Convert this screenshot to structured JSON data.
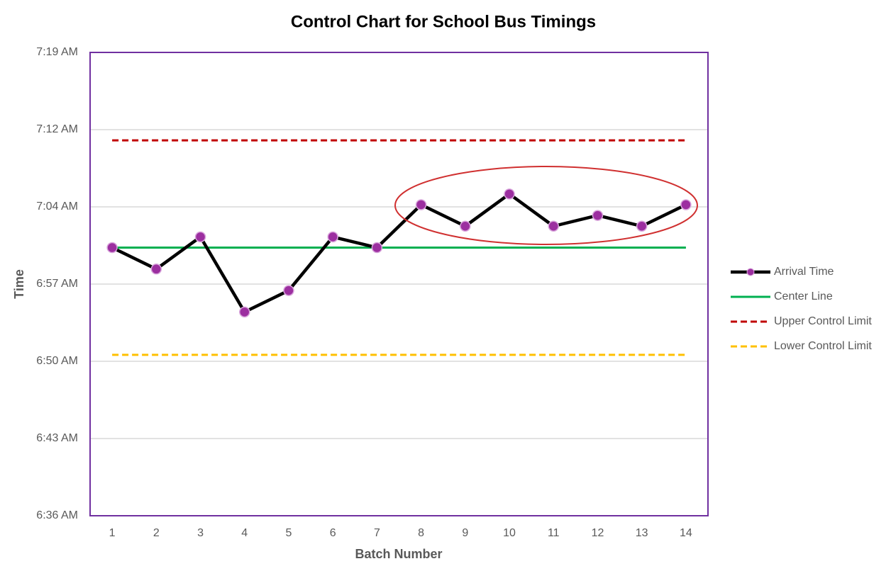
{
  "chart_data": {
    "type": "line",
    "title": "Control Chart for School Bus Timings",
    "x_label": "Batch Number",
    "y_label": "Time",
    "categories": [
      "1",
      "2",
      "3",
      "4",
      "5",
      "6",
      "7",
      "8",
      "9",
      "10",
      "11",
      "12",
      "13",
      "14"
    ],
    "series": [
      {
        "name": "Arrival Time",
        "color": "#000000",
        "marker_color": "#9c2fa0",
        "dashed": false,
        "markers": true,
        "values": [
          421,
          419,
          422,
          415,
          417,
          422,
          421,
          425,
          423,
          426,
          423,
          424,
          423,
          425
        ]
      },
      {
        "name": "Center Line",
        "color": "#00b050",
        "dashed": false,
        "markers": false,
        "values": [
          421,
          421,
          421,
          421,
          421,
          421,
          421,
          421,
          421,
          421,
          421,
          421,
          421,
          421
        ]
      },
      {
        "name": "Upper Control Limit",
        "color": "#c00000",
        "dashed": true,
        "markers": false,
        "values": [
          431,
          431,
          431,
          431,
          431,
          431,
          431,
          431,
          431,
          431,
          431,
          431,
          431,
          431
        ]
      },
      {
        "name": "Lower Control Limit",
        "color": "#ffc000",
        "dashed": true,
        "markers": false,
        "values": [
          411,
          411,
          411,
          411,
          411,
          411,
          411,
          411,
          411,
          411,
          411,
          411,
          411,
          411
        ]
      }
    ],
    "ylim": [
      396,
      439.2
    ],
    "yticks": [
      {
        "value": 396,
        "label": "6:36 AM"
      },
      {
        "value": 403.2,
        "label": "6:43 AM"
      },
      {
        "value": 410.4,
        "label": "6:50 AM"
      },
      {
        "value": 417.6,
        "label": "6:57 AM"
      },
      {
        "value": 424.8,
        "label": "7:04 AM"
      },
      {
        "value": 432,
        "label": "7:12 AM"
      },
      {
        "value": 439.2,
        "label": "7:19 AM"
      }
    ],
    "grid": true,
    "legend": "right"
  }
}
